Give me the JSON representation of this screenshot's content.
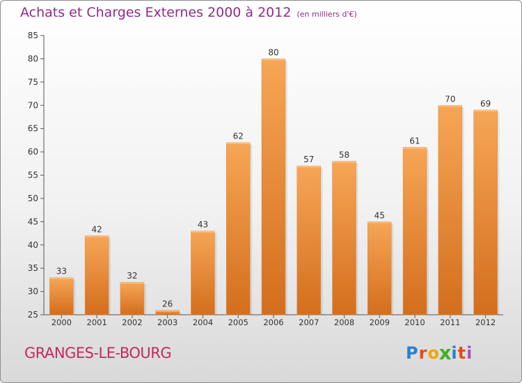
{
  "title": "Achats et Charges Externes 2000 à 2012",
  "unit_note": "(en milliers d'€)",
  "commune": "GRANGES-LE-BOURG",
  "logo": {
    "letters": [
      "P",
      "r",
      "o",
      "x",
      "i",
      "t",
      "i"
    ],
    "colors": [
      "#2a7fd0",
      "#e64a19",
      "#f4a300",
      "#3fae2a",
      "#2a7fd0",
      "#e64a19",
      "#9b59b6"
    ]
  },
  "colors": {
    "bar": "#f2a14e",
    "title": "#8e2c88",
    "commune": "#c02a60"
  },
  "chart_data": {
    "type": "bar",
    "categories": [
      "2000",
      "2001",
      "2002",
      "2003",
      "2004",
      "2005",
      "2006",
      "2007",
      "2008",
      "2009",
      "2010",
      "2011",
      "2012"
    ],
    "values": [
      33,
      42,
      32,
      26,
      43,
      62,
      80,
      57,
      58,
      45,
      61,
      70,
      69
    ],
    "title": "Achats et Charges Externes 2000 à 2012",
    "ylim": [
      25,
      85
    ],
    "yticks": [
      25,
      30,
      35,
      40,
      45,
      50,
      55,
      60,
      65,
      70,
      75,
      80,
      85
    ],
    "grid": false
  }
}
